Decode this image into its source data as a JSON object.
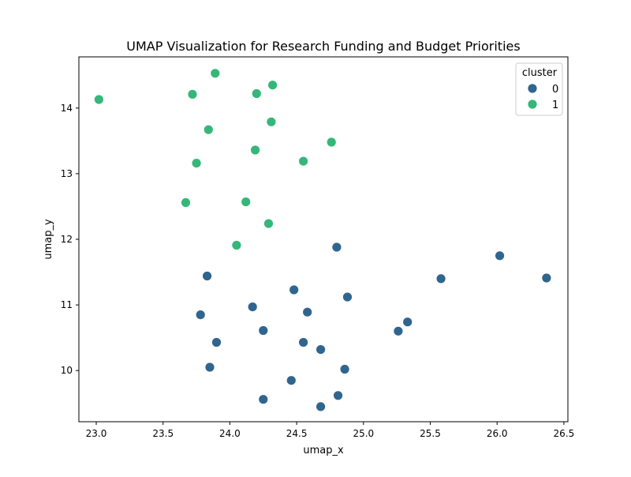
{
  "chart_data": {
    "type": "scatter",
    "title": "UMAP Visualization for Research Funding and Budget Priorities",
    "xlabel": "umap_x",
    "ylabel": "umap_y",
    "xlim": [
      22.87,
      26.53
    ],
    "ylim": [
      9.22,
      14.78
    ],
    "xticks": [
      23.0,
      23.5,
      24.0,
      24.5,
      25.0,
      25.5,
      26.0,
      26.5
    ],
    "xtick_labels": [
      "23.0",
      "23.5",
      "24.0",
      "24.5",
      "25.0",
      "25.5",
      "26.0",
      "26.5"
    ],
    "yticks": [
      10,
      11,
      12,
      13,
      14
    ],
    "ytick_labels": [
      "10",
      "11",
      "12",
      "13",
      "14"
    ],
    "grid": false,
    "legend": {
      "title": "cluster",
      "position": "upper-right"
    },
    "series": [
      {
        "name": "0",
        "color": "#30658e",
        "points": [
          [
            24.8,
            11.88
          ],
          [
            26.02,
            11.75
          ],
          [
            25.58,
            11.4
          ],
          [
            26.37,
            11.41
          ],
          [
            23.83,
            11.44
          ],
          [
            24.48,
            11.23
          ],
          [
            24.88,
            11.12
          ],
          [
            24.17,
            10.97
          ],
          [
            24.58,
            10.89
          ],
          [
            23.78,
            10.85
          ],
          [
            25.33,
            10.74
          ],
          [
            25.26,
            10.6
          ],
          [
            24.25,
            10.61
          ],
          [
            23.9,
            10.43
          ],
          [
            24.55,
            10.43
          ],
          [
            24.68,
            10.32
          ],
          [
            23.85,
            10.05
          ],
          [
            24.86,
            10.02
          ],
          [
            24.46,
            9.85
          ],
          [
            24.81,
            9.62
          ],
          [
            24.25,
            9.56
          ],
          [
            24.68,
            9.45
          ]
        ]
      },
      {
        "name": "1",
        "color": "#35b779",
        "points": [
          [
            23.89,
            14.53
          ],
          [
            24.32,
            14.35
          ],
          [
            23.02,
            14.13
          ],
          [
            23.72,
            14.21
          ],
          [
            24.2,
            14.22
          ],
          [
            24.31,
            13.79
          ],
          [
            23.84,
            13.67
          ],
          [
            24.76,
            13.48
          ],
          [
            24.19,
            13.36
          ],
          [
            24.55,
            13.19
          ],
          [
            23.75,
            13.16
          ],
          [
            23.67,
            12.56
          ],
          [
            24.12,
            12.57
          ],
          [
            24.29,
            12.24
          ],
          [
            24.05,
            11.91
          ]
        ]
      }
    ]
  }
}
